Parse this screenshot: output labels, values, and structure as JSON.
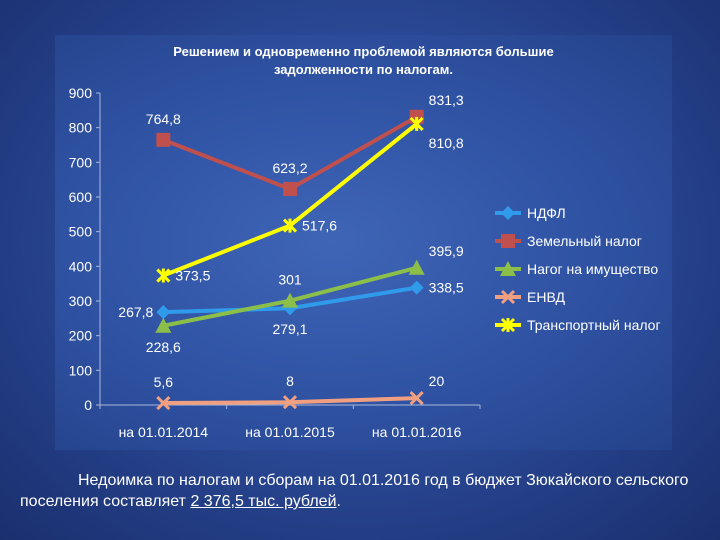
{
  "chart_data": {
    "type": "line",
    "title_lines": [
      "Решением и одновременно проблемой являются большие",
      "задолженности  по налогам."
    ],
    "categories": [
      "на 01.01.2014",
      "на 01.01.2015",
      "на 01.01.2016"
    ],
    "ylim": [
      0,
      900
    ],
    "yticks": [
      "0",
      "100",
      "200",
      "300",
      "400",
      "500",
      "600",
      "700",
      "800",
      "900"
    ],
    "grid": false,
    "legend_position": "right",
    "series": [
      {
        "name": "НДФЛ",
        "color": "#2f9bea",
        "marker": "diamond",
        "values": [
          267.8,
          279.1,
          338.5
        ],
        "labels": [
          "267,8",
          "279,1",
          "338,5"
        ],
        "label_pos": [
          "left",
          "below",
          "right"
        ]
      },
      {
        "name": "Земельный налог",
        "color": "#c0504d",
        "marker": "square",
        "values": [
          764.8,
          623.2,
          831.3
        ],
        "labels": [
          "764,8",
          "623,2",
          "831,3"
        ],
        "label_pos": [
          "above",
          "above",
          "right-above"
        ]
      },
      {
        "name": "Нагог на имущество",
        "color": "#8cbf4a",
        "marker": "triangle",
        "values": [
          228.6,
          301,
          395.9
        ],
        "labels": [
          "228,6",
          "301",
          "395,9"
        ],
        "label_pos": [
          "below",
          "above",
          "right-above"
        ]
      },
      {
        "name": "ЕНВД",
        "color": "#f0a080",
        "marker": "x",
        "values": [
          5.6,
          8,
          20
        ],
        "labels": [
          "5,6",
          "8",
          "20"
        ],
        "label_pos": [
          "above",
          "above",
          "right-above"
        ]
      },
      {
        "name": "Транспортный налог",
        "color": "#ffff00",
        "marker": "star",
        "values": [
          373.5,
          517.6,
          810.8
        ],
        "labels": [
          "373,5",
          "517,6",
          "810,8"
        ],
        "label_pos": [
          "right",
          "right",
          "right-below"
        ]
      }
    ]
  },
  "caption": {
    "text": "Недоимка по налогам и сборам на 01.01.2016 год в бюджет Зюкайского сельского поселения составляет ",
    "amount": "2 376,5 тыс. рублей",
    "end": "."
  }
}
